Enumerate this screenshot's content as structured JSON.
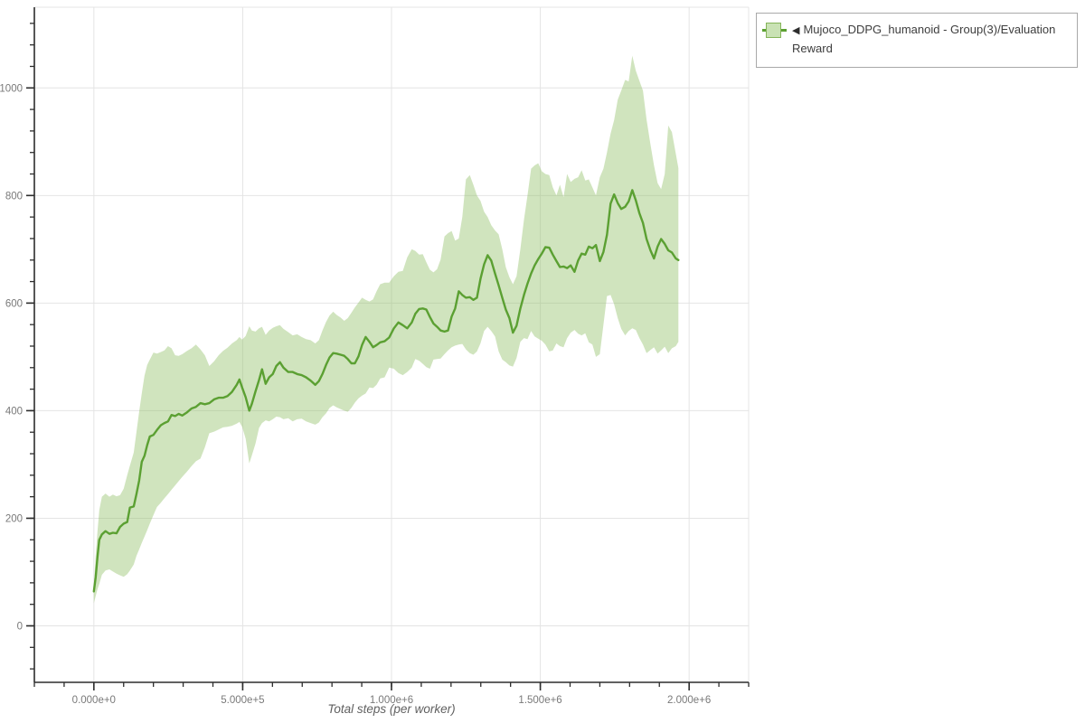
{
  "page": {
    "background": "#ffffff"
  },
  "legend": {
    "marker": "◀",
    "label": "Mujoco_DDPG_humanoid - Group(3)/Evaluation Reward",
    "swatch_band_color": "#c9e2b4",
    "swatch_border_color": "#85b55a",
    "swatch_line_color": "#5ba032"
  },
  "chart_data": {
    "type": "line",
    "title": "",
    "xlabel": "Total steps (per worker)",
    "ylabel": "",
    "grid": true,
    "legend_position": "top-right",
    "xlim": [
      -200000,
      2200000
    ],
    "ylim": [
      -105,
      1150
    ],
    "x_tick_values": [
      0,
      500000,
      1000000,
      1500000,
      2000000
    ],
    "x_tick_labels": [
      "0.000e+0",
      "5.000e+5",
      "1.000e+6",
      "1.500e+6",
      "2.000e+6"
    ],
    "x_minor_step": 100000,
    "y_tick_values": [
      0,
      200,
      400,
      600,
      800,
      1000
    ],
    "y_tick_labels": [
      "0",
      "200",
      "400",
      "600",
      "800",
      "1000"
    ],
    "y_minor_step": 40,
    "colors": {
      "line": "#5ba032",
      "band": "#8fbf63",
      "band_opacity": 0.42,
      "grid": "#e4e4e4",
      "axis": "#2d2d2d",
      "tick_text": "#797979",
      "axis_label_text": "#606060"
    },
    "series": [
      {
        "name": "Mujoco_DDPG_humanoid - Group(3)/Evaluation Reward",
        "x": [
          0,
          6000,
          12000,
          18000,
          27000,
          39000,
          52000,
          64000,
          76000,
          88000,
          100000,
          112000,
          121000,
          134000,
          143000,
          152000,
          161000,
          170000,
          179000,
          188000,
          200000,
          212000,
          225000,
          237000,
          249000,
          261000,
          273000,
          285000,
          297000,
          313000,
          328000,
          343000,
          358000,
          373000,
          388000,
          404000,
          419000,
          434000,
          449000,
          464000,
          480000,
          489000,
          498000,
          510000,
          522000,
          531000,
          543000,
          555000,
          565000,
          577000,
          589000,
          601000,
          613000,
          625000,
          637000,
          653000,
          668000,
          683000,
          698000,
          713000,
          728000,
          744000,
          756000,
          768000,
          780000,
          792000,
          804000,
          816000,
          829000,
          841000,
          853000,
          865000,
          877000,
          889000,
          901000,
          913000,
          926000,
          938000,
          950000,
          962000,
          977000,
          992000,
          1008000,
          1023000,
          1038000,
          1053000,
          1068000,
          1080000,
          1093000,
          1105000,
          1117000,
          1129000,
          1141000,
          1153000,
          1165000,
          1178000,
          1190000,
          1202000,
          1214000,
          1226000,
          1238000,
          1250000,
          1263000,
          1275000,
          1287000,
          1299000,
          1311000,
          1323000,
          1335000,
          1348000,
          1360000,
          1372000,
          1384000,
          1396000,
          1408000,
          1420000,
          1433000,
          1445000,
          1457000,
          1469000,
          1481000,
          1493000,
          1505000,
          1517000,
          1530000,
          1542000,
          1554000,
          1566000,
          1578000,
          1590000,
          1602000,
          1615000,
          1627000,
          1639000,
          1651000,
          1663000,
          1675000,
          1687000,
          1700000,
          1712000,
          1724000,
          1736000,
          1748000,
          1760000,
          1772000,
          1785000,
          1797000,
          1809000,
          1821000,
          1833000,
          1845000,
          1857000,
          1870000,
          1882000,
          1894000,
          1906000,
          1918000,
          1930000,
          1942000,
          1955000,
          1964000
        ],
        "mean": [
          64,
          90,
          128,
          160,
          170,
          176,
          171,
          173,
          172,
          184,
          190,
          193,
          220,
          222,
          245,
          270,
          305,
          316,
          336,
          352,
          355,
          364,
          373,
          377,
          380,
          392,
          390,
          394,
          391,
          397,
          404,
          407,
          414,
          412,
          414,
          421,
          424,
          424,
          427,
          435,
          448,
          458,
          443,
          425,
          400,
          413,
          436,
          457,
          477,
          450,
          462,
          468,
          483,
          490,
          480,
          472,
          472,
          468,
          466,
          462,
          456,
          448,
          455,
          468,
          485,
          499,
          507,
          506,
          504,
          502,
          496,
          488,
          488,
          501,
          522,
          537,
          528,
          518,
          522,
          527,
          529,
          536,
          553,
          564,
          559,
          553,
          564,
          580,
          589,
          590,
          588,
          574,
          562,
          556,
          549,
          547,
          549,
          575,
          590,
          622,
          615,
          610,
          611,
          606,
          610,
          645,
          672,
          689,
          679,
          655,
          633,
          610,
          588,
          572,
          545,
          558,
          590,
          615,
          636,
          655,
          670,
          682,
          692,
          704,
          703,
          690,
          678,
          667,
          668,
          665,
          670,
          658,
          679,
          692,
          690,
          705,
          702,
          708,
          678,
          695,
          727,
          785,
          802,
          786,
          775,
          779,
          789,
          810,
          791,
          767,
          749,
          719,
          698,
          683,
          705,
          719,
          710,
          698,
          694,
          683,
          680
        ],
        "lower": [
          42,
          55,
          68,
          78,
          95,
          103,
          105,
          101,
          97,
          94,
          91,
          96,
          103,
          114,
          130,
          142,
          154,
          166,
          178,
          190,
          206,
          221,
          229,
          237,
          245,
          253,
          261,
          269,
          277,
          287,
          297,
          306,
          311,
          332,
          358,
          361,
          365,
          369,
          370,
          372,
          376,
          379,
          370,
          348,
          302,
          317,
          339,
          368,
          377,
          382,
          380,
          384,
          389,
          388,
          384,
          386,
          380,
          384,
          385,
          380,
          377,
          374,
          378,
          388,
          395,
          405,
          410,
          406,
          403,
          400,
          398,
          405,
          415,
          423,
          428,
          432,
          443,
          442,
          448,
          460,
          462,
          480,
          478,
          470,
          466,
          472,
          480,
          496,
          493,
          487,
          481,
          478,
          495,
          496,
          497,
          505,
          512,
          518,
          521,
          523,
          524,
          514,
          507,
          504,
          510,
          525,
          548,
          556,
          548,
          538,
          510,
          495,
          490,
          484,
          482,
          498,
          528,
          535,
          533,
          548,
          538,
          534,
          530,
          523,
          510,
          512,
          525,
          520,
          518,
          535,
          545,
          550,
          543,
          540,
          544,
          527,
          523,
          500,
          505,
          560,
          613,
          615,
          598,
          572,
          552,
          540,
          548,
          553,
          550,
          535,
          523,
          507,
          513,
          518,
          506,
          512,
          519,
          507,
          516,
          520,
          528
        ],
        "upper": [
          75,
          130,
          175,
          215,
          240,
          246,
          240,
          244,
          241,
          243,
          255,
          280,
          298,
          322,
          360,
          398,
          432,
          465,
          485,
          495,
          508,
          506,
          509,
          512,
          520,
          516,
          503,
          502,
          505,
          511,
          516,
          523,
          514,
          503,
          483,
          492,
          503,
          511,
          517,
          525,
          531,
          537,
          532,
          539,
          557,
          549,
          547,
          553,
          556,
          541,
          549,
          554,
          557,
          559,
          552,
          546,
          540,
          542,
          537,
          533,
          531,
          525,
          531,
          549,
          565,
          577,
          584,
          578,
          573,
          567,
          572,
          582,
          592,
          601,
          610,
          606,
          603,
          607,
          622,
          635,
          638,
          638,
          650,
          658,
          660,
          685,
          700,
          697,
          690,
          691,
          676,
          662,
          657,
          663,
          681,
          724,
          730,
          734,
          716,
          720,
          760,
          830,
          838,
          820,
          800,
          790,
          770,
          760,
          745,
          735,
          728,
          700,
          667,
          648,
          635,
          650,
          700,
          755,
          800,
          850,
          856,
          860,
          845,
          840,
          838,
          815,
          800,
          820,
          797,
          840,
          825,
          831,
          834,
          847,
          828,
          830,
          815,
          800,
          834,
          850,
          880,
          915,
          940,
          978,
          995,
          1015,
          1012,
          1060,
          1032,
          1013,
          995,
          941,
          895,
          856,
          823,
          812,
          840,
          930,
          918,
          878,
          851
        ]
      }
    ]
  }
}
